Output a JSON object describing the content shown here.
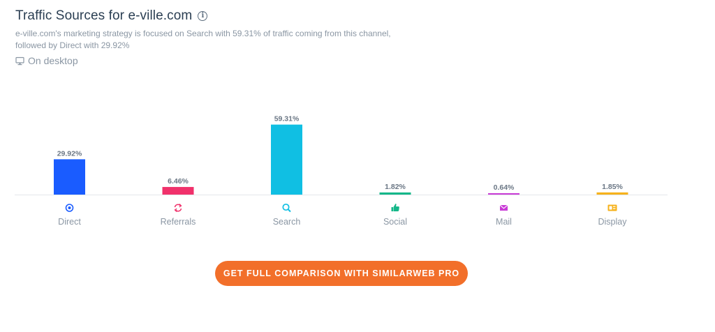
{
  "header": {
    "title": "Traffic Sources for e-ville.com",
    "subtitle_line1": "e-ville.com's marketing strategy is focused on Search with 59.31% of traffic coming from this channel,",
    "subtitle_line2": "followed by Direct with 29.92%",
    "device_label": "On desktop"
  },
  "cta": {
    "label": "GET FULL COMPARISON WITH SIMILARWEB PRO",
    "color": "#f26f2a"
  },
  "chart_data": {
    "type": "bar",
    "title": "Traffic Sources for e-ville.com",
    "xlabel": "",
    "ylabel": "",
    "ylim": [
      0,
      65
    ],
    "grid": false,
    "categories": [
      "Direct",
      "Referrals",
      "Search",
      "Social",
      "Mail",
      "Display"
    ],
    "values": [
      29.92,
      6.46,
      59.31,
      1.82,
      0.64,
      1.85
    ],
    "data_labels": [
      "29.92%",
      "6.46%",
      "59.31%",
      "1.82%",
      "0.64%",
      "1.85%"
    ],
    "colors": [
      "#1a5cff",
      "#f0316b",
      "#10bfe3",
      "#15b789",
      "#c93bd6",
      "#f6b21b"
    ],
    "icons": [
      "direct-icon",
      "referrals-icon",
      "search-icon",
      "social-icon",
      "mail-icon",
      "display-icon"
    ]
  }
}
